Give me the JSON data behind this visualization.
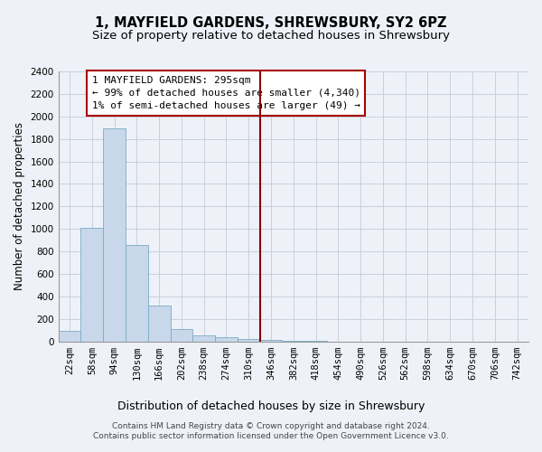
{
  "title_line1": "1, MAYFIELD GARDENS, SHREWSBURY, SY2 6PZ",
  "title_line2": "Size of property relative to detached houses in Shrewsbury",
  "xlabel": "Distribution of detached houses by size in Shrewsbury",
  "ylabel": "Number of detached properties",
  "bar_color": "#c8d8ea",
  "bar_edgecolor": "#7baac8",
  "grid_color": "#c8d0dc",
  "annotation_box_color": "#aa0000",
  "vline_color": "#880000",
  "footnote_line1": "Contains HM Land Registry data © Crown copyright and database right 2024.",
  "footnote_line2": "Contains public sector information licensed under the Open Government Licence v3.0.",
  "annotation_title": "1 MAYFIELD GARDENS: 295sqm",
  "annotation_line2": "← 99% of detached houses are smaller (4,340)",
  "annotation_line3": "1% of semi-detached houses are larger (49) →",
  "categories": [
    "22sqm",
    "58sqm",
    "94sqm",
    "130sqm",
    "166sqm",
    "202sqm",
    "238sqm",
    "274sqm",
    "310sqm",
    "346sqm",
    "382sqm",
    "418sqm",
    "454sqm",
    "490sqm",
    "526sqm",
    "562sqm",
    "598sqm",
    "634sqm",
    "670sqm",
    "706sqm",
    "742sqm"
  ],
  "values": [
    90,
    1010,
    1890,
    860,
    315,
    110,
    50,
    40,
    20,
    15,
    5,
    2,
    1,
    1,
    0,
    0,
    0,
    0,
    0,
    0,
    0
  ],
  "vline_x_index": 8,
  "ylim": [
    0,
    2400
  ],
  "yticks": [
    0,
    200,
    400,
    600,
    800,
    1000,
    1200,
    1400,
    1600,
    1800,
    2000,
    2200,
    2400
  ],
  "background_color": "#eef2f8",
  "plot_bg_color": "#eef2f8",
  "title_fontsize": 10.5,
  "subtitle_fontsize": 9.5,
  "ylabel_fontsize": 8.5,
  "xlabel_fontsize": 9,
  "tick_fontsize": 7.5,
  "annotation_fontsize": 8,
  "footnote_fontsize": 6.5
}
